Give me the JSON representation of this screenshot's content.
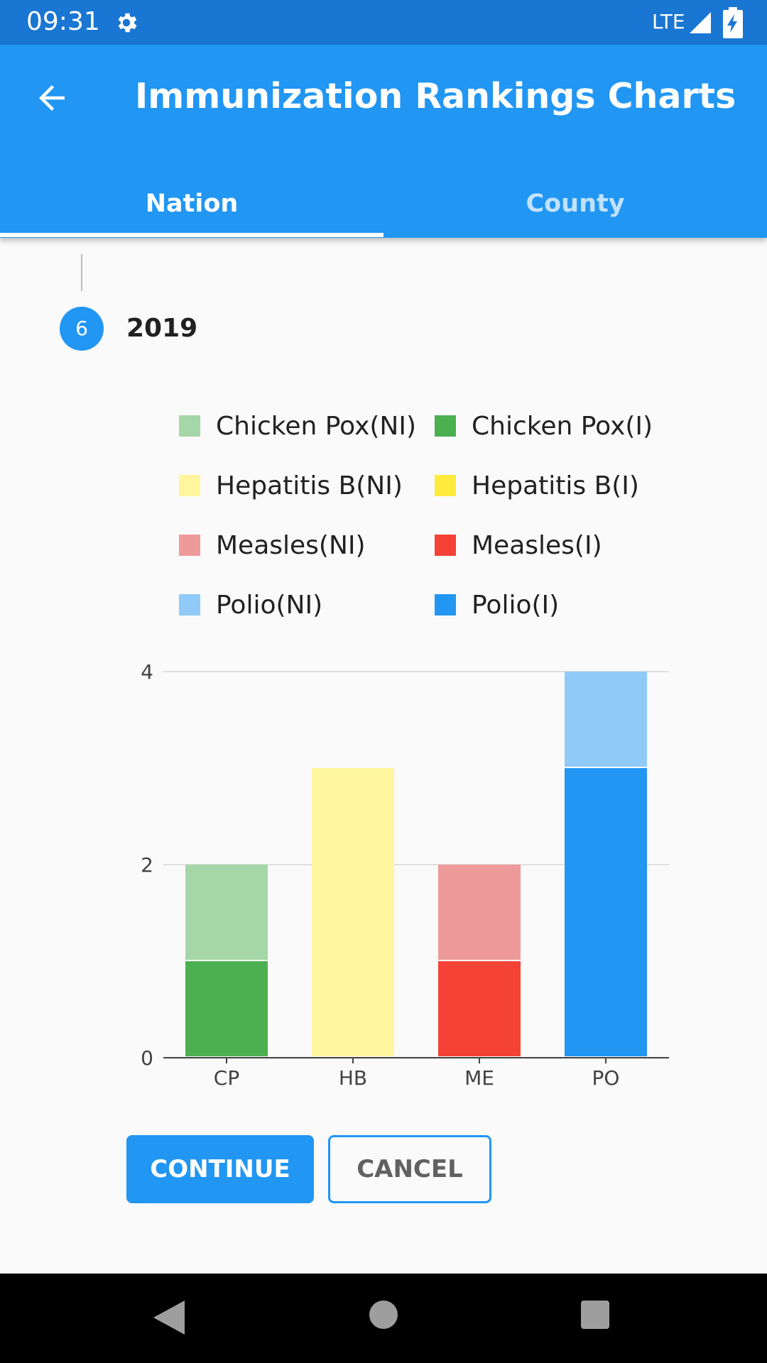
{
  "status_bar": {
    "time": "09:31",
    "network": "LTE"
  },
  "app_bar": {
    "title": "Immunization Rankings Charts"
  },
  "tabs": [
    {
      "label": "Nation",
      "selected": true
    },
    {
      "label": "County",
      "selected": false
    }
  ],
  "step": {
    "number": "6",
    "title": "2019"
  },
  "buttons": {
    "continue": "CONTINUE",
    "cancel": "CANCEL"
  },
  "colors": {
    "primary": "#2196f3",
    "primary_dark": "#1976d2",
    "grid": "#e0e0e0",
    "axis": "#424242"
  },
  "chart_data": {
    "type": "bar",
    "stacked": true,
    "categories": [
      "CP",
      "HB",
      "ME",
      "PO"
    ],
    "series": [
      {
        "name": "Chicken Pox(I)",
        "color": "#4caf50",
        "values": [
          1,
          0,
          0,
          0
        ]
      },
      {
        "name": "Chicken Pox(NI)",
        "color": "#a5d6a7",
        "values": [
          1,
          0,
          0,
          0
        ]
      },
      {
        "name": "Hepatitis B(I)",
        "color": "#ffeb3b",
        "values": [
          0,
          0,
          0,
          0
        ]
      },
      {
        "name": "Hepatitis B(NI)",
        "color": "#fff59d",
        "values": [
          0,
          3,
          0,
          0
        ]
      },
      {
        "name": "Measles(I)",
        "color": "#f44336",
        "values": [
          0,
          0,
          1,
          0
        ]
      },
      {
        "name": "Measles(NI)",
        "color": "#ef9a9a",
        "values": [
          0,
          0,
          1,
          0
        ]
      },
      {
        "name": "Polio(I)",
        "color": "#2196f3",
        "values": [
          0,
          0,
          0,
          3
        ]
      },
      {
        "name": "Polio(NI)",
        "color": "#90caf9",
        "values": [
          0,
          0,
          0,
          1
        ]
      }
    ],
    "legend": [
      {
        "name": "Chicken Pox(NI)",
        "color": "#a5d6a7"
      },
      {
        "name": "Chicken Pox(I)",
        "color": "#4caf50"
      },
      {
        "name": "Hepatitis B(NI)",
        "color": "#fff59d"
      },
      {
        "name": "Hepatitis B(I)",
        "color": "#ffeb3b"
      },
      {
        "name": "Measles(NI)",
        "color": "#ef9a9a"
      },
      {
        "name": "Measles(I)",
        "color": "#f44336"
      },
      {
        "name": "Polio(NI)",
        "color": "#90caf9"
      },
      {
        "name": "Polio(I)",
        "color": "#2196f3"
      }
    ],
    "yticks": [
      0,
      2,
      4
    ],
    "ylim": [
      0,
      4
    ],
    "grid": true,
    "legend_position": "top",
    "title": "",
    "xlabel": "",
    "ylabel": ""
  }
}
